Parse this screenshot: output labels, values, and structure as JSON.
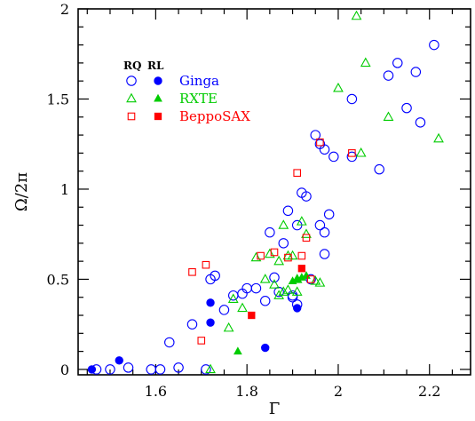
{
  "chart_data": {
    "type": "scatter",
    "xlabel": "Γ",
    "ylabel": "Ω/2π",
    "xlim": [
      1.43,
      2.29
    ],
    "ylim": [
      -0.03,
      2.0
    ],
    "x_ticks": [
      1.6,
      1.8,
      2,
      2.2
    ],
    "x_tick_labels": [
      "1.6",
      "1.8",
      "2",
      "2.2"
    ],
    "y_ticks": [
      0,
      0.5,
      1,
      1.5,
      2
    ],
    "y_tick_labels": [
      "0",
      "0.5",
      "1",
      "1.5",
      "2"
    ],
    "legend": {
      "position": "top-left",
      "header_rq": "RQ",
      "header_rl": "RL",
      "entries": [
        "Ginga",
        "RXTE",
        "BeppoSAX"
      ]
    },
    "series": [
      {
        "name": "Ginga",
        "group": "RQ",
        "marker": "open-circle",
        "color": "#0000ff",
        "points": [
          [
            1.47,
            0.0
          ],
          [
            1.5,
            0.0
          ],
          [
            1.54,
            0.01
          ],
          [
            1.59,
            0.0
          ],
          [
            1.61,
            0.0
          ],
          [
            1.65,
            0.01
          ],
          [
            1.63,
            0.15
          ],
          [
            1.68,
            0.25
          ],
          [
            1.72,
            0.5
          ],
          [
            1.73,
            0.52
          ],
          [
            1.75,
            0.33
          ],
          [
            1.77,
            0.41
          ],
          [
            1.79,
            0.42
          ],
          [
            1.8,
            0.45
          ],
          [
            1.82,
            0.45
          ],
          [
            1.84,
            0.38
          ],
          [
            1.86,
            0.51
          ],
          [
            1.87,
            0.43
          ],
          [
            1.85,
            0.76
          ],
          [
            1.88,
            0.7
          ],
          [
            1.89,
            0.88
          ],
          [
            1.9,
            0.4
          ],
          [
            1.91,
            0.36
          ],
          [
            1.9,
            0.41
          ],
          [
            1.91,
            0.8
          ],
          [
            1.92,
            0.98
          ],
          [
            1.93,
            0.96
          ],
          [
            1.94,
            0.5
          ],
          [
            1.96,
            0.8
          ],
          [
            1.97,
            0.76
          ],
          [
            1.98,
            0.86
          ],
          [
            1.97,
            0.64
          ],
          [
            1.95,
            1.3
          ],
          [
            1.96,
            1.25
          ],
          [
            1.97,
            1.22
          ],
          [
            1.99,
            1.18
          ],
          [
            2.03,
            1.18
          ],
          [
            2.03,
            1.5
          ],
          [
            2.09,
            1.11
          ],
          [
            2.11,
            1.63
          ],
          [
            2.13,
            1.7
          ],
          [
            2.15,
            1.45
          ],
          [
            2.17,
            1.65
          ],
          [
            2.18,
            1.37
          ],
          [
            2.21,
            1.8
          ],
          [
            1.71,
            0.0
          ]
        ]
      },
      {
        "name": "Ginga",
        "group": "RL",
        "marker": "filled-circle",
        "color": "#0000ff",
        "points": [
          [
            1.46,
            0.0
          ],
          [
            1.52,
            0.05
          ],
          [
            1.72,
            0.26
          ],
          [
            1.72,
            0.37
          ],
          [
            1.84,
            0.12
          ],
          [
            1.91,
            0.34
          ]
        ]
      },
      {
        "name": "RXTE",
        "group": "RQ",
        "marker": "open-triangle",
        "color": "#00cc00",
        "points": [
          [
            1.72,
            0.0
          ],
          [
            1.76,
            0.23
          ],
          [
            1.77,
            0.39
          ],
          [
            1.79,
            0.34
          ],
          [
            1.82,
            0.62
          ],
          [
            1.84,
            0.5
          ],
          [
            1.85,
            0.64
          ],
          [
            1.86,
            0.47
          ],
          [
            1.87,
            0.41
          ],
          [
            1.88,
            0.43
          ],
          [
            1.89,
            0.63
          ],
          [
            1.88,
            0.8
          ],
          [
            1.9,
            0.63
          ],
          [
            1.91,
            0.5
          ],
          [
            1.92,
            0.82
          ],
          [
            1.93,
            0.75
          ],
          [
            1.95,
            0.49
          ],
          [
            1.96,
            0.48
          ],
          [
            1.91,
            0.43
          ],
          [
            1.87,
            0.6
          ],
          [
            1.89,
            0.44
          ],
          [
            2.0,
            1.56
          ],
          [
            2.04,
            1.96
          ],
          [
            2.06,
            1.7
          ],
          [
            2.05,
            1.2
          ],
          [
            2.11,
            1.4
          ],
          [
            2.22,
            1.28
          ]
        ]
      },
      {
        "name": "RXTE",
        "group": "RL",
        "marker": "filled-triangle",
        "color": "#00cc00",
        "points": [
          [
            1.78,
            0.1
          ],
          [
            1.9,
            0.49
          ],
          [
            1.91,
            0.5
          ],
          [
            1.92,
            0.51
          ],
          [
            1.93,
            0.52
          ]
        ]
      },
      {
        "name": "BeppoSAX",
        "group": "RQ",
        "marker": "open-square",
        "color": "#ff0000",
        "points": [
          [
            1.68,
            0.54
          ],
          [
            1.7,
            0.16
          ],
          [
            1.71,
            0.58
          ],
          [
            1.83,
            0.63
          ],
          [
            1.86,
            0.65
          ],
          [
            1.89,
            0.62
          ],
          [
            1.91,
            1.09
          ],
          [
            1.92,
            0.63
          ],
          [
            1.93,
            0.73
          ],
          [
            1.94,
            0.5
          ],
          [
            1.96,
            1.26
          ],
          [
            2.03,
            1.2
          ]
        ]
      },
      {
        "name": "BeppoSAX",
        "group": "RL",
        "marker": "filled-square",
        "color": "#ff0000",
        "points": [
          [
            1.81,
            0.3
          ],
          [
            1.92,
            0.56
          ]
        ]
      }
    ]
  }
}
